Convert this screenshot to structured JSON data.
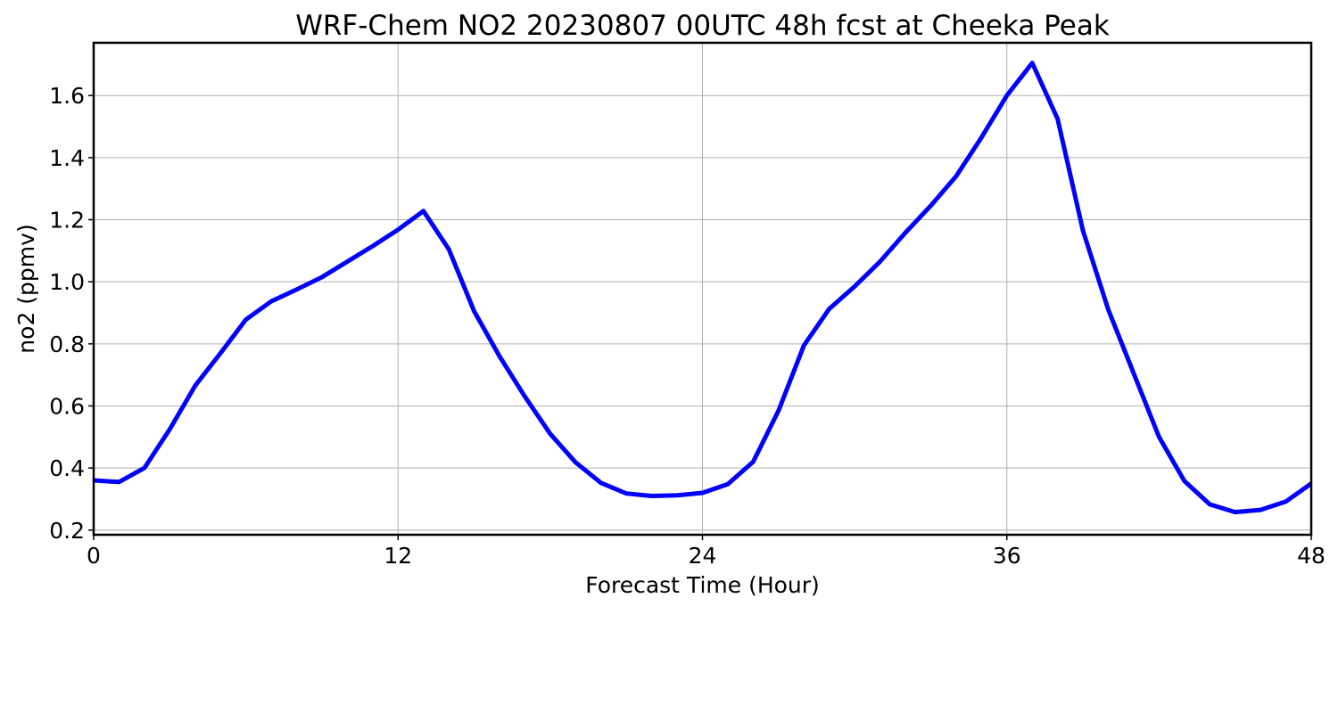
{
  "chart_data": {
    "type": "line",
    "title": "WRF-Chem NO2  20230807 00UTC 48h fcst at Cheeka Peak",
    "xlabel": "Forecast Time (Hour)",
    "ylabel": "no2  (ppmv)",
    "xlim": [
      0,
      48
    ],
    "ylim": [
      0.185,
      1.77
    ],
    "x_ticks": [
      0,
      12,
      24,
      36,
      48
    ],
    "x_tick_labels": [
      "0",
      "12",
      "24",
      "36",
      "48"
    ],
    "y_ticks": [
      0.2,
      0.4,
      0.6,
      0.8,
      1.0,
      1.2,
      1.4,
      1.6
    ],
    "y_tick_labels": [
      "0.2",
      "0.4",
      "0.6",
      "0.8",
      "1.0",
      "1.2",
      "1.4",
      "1.6"
    ],
    "grid": true,
    "line_color": "#0000ff",
    "series": [
      {
        "x": [
          0,
          1,
          2,
          3,
          4,
          5,
          6,
          7,
          8,
          9,
          10,
          11,
          12,
          13,
          14,
          15,
          16,
          17,
          18,
          19,
          20,
          21,
          22,
          23,
          24,
          25,
          26,
          27,
          28,
          29,
          30,
          31,
          32,
          33,
          34,
          35,
          36,
          37,
          38,
          39,
          40,
          41,
          42,
          43,
          44,
          45,
          46,
          47,
          48
        ],
        "values": [
          0.36,
          0.355,
          0.4,
          0.525,
          0.665,
          0.77,
          0.878,
          0.937,
          0.975,
          1.015,
          1.065,
          1.115,
          1.168,
          1.228,
          1.105,
          0.905,
          0.76,
          0.63,
          0.51,
          0.418,
          0.352,
          0.318,
          0.31,
          0.312,
          0.32,
          0.348,
          0.42,
          0.585,
          0.795,
          0.913,
          0.985,
          1.065,
          1.158,
          1.245,
          1.34,
          1.465,
          1.6,
          1.705,
          1.525,
          1.165,
          0.91,
          0.705,
          0.5,
          0.358,
          0.283,
          0.258,
          0.265,
          0.292,
          0.35
        ]
      }
    ]
  }
}
